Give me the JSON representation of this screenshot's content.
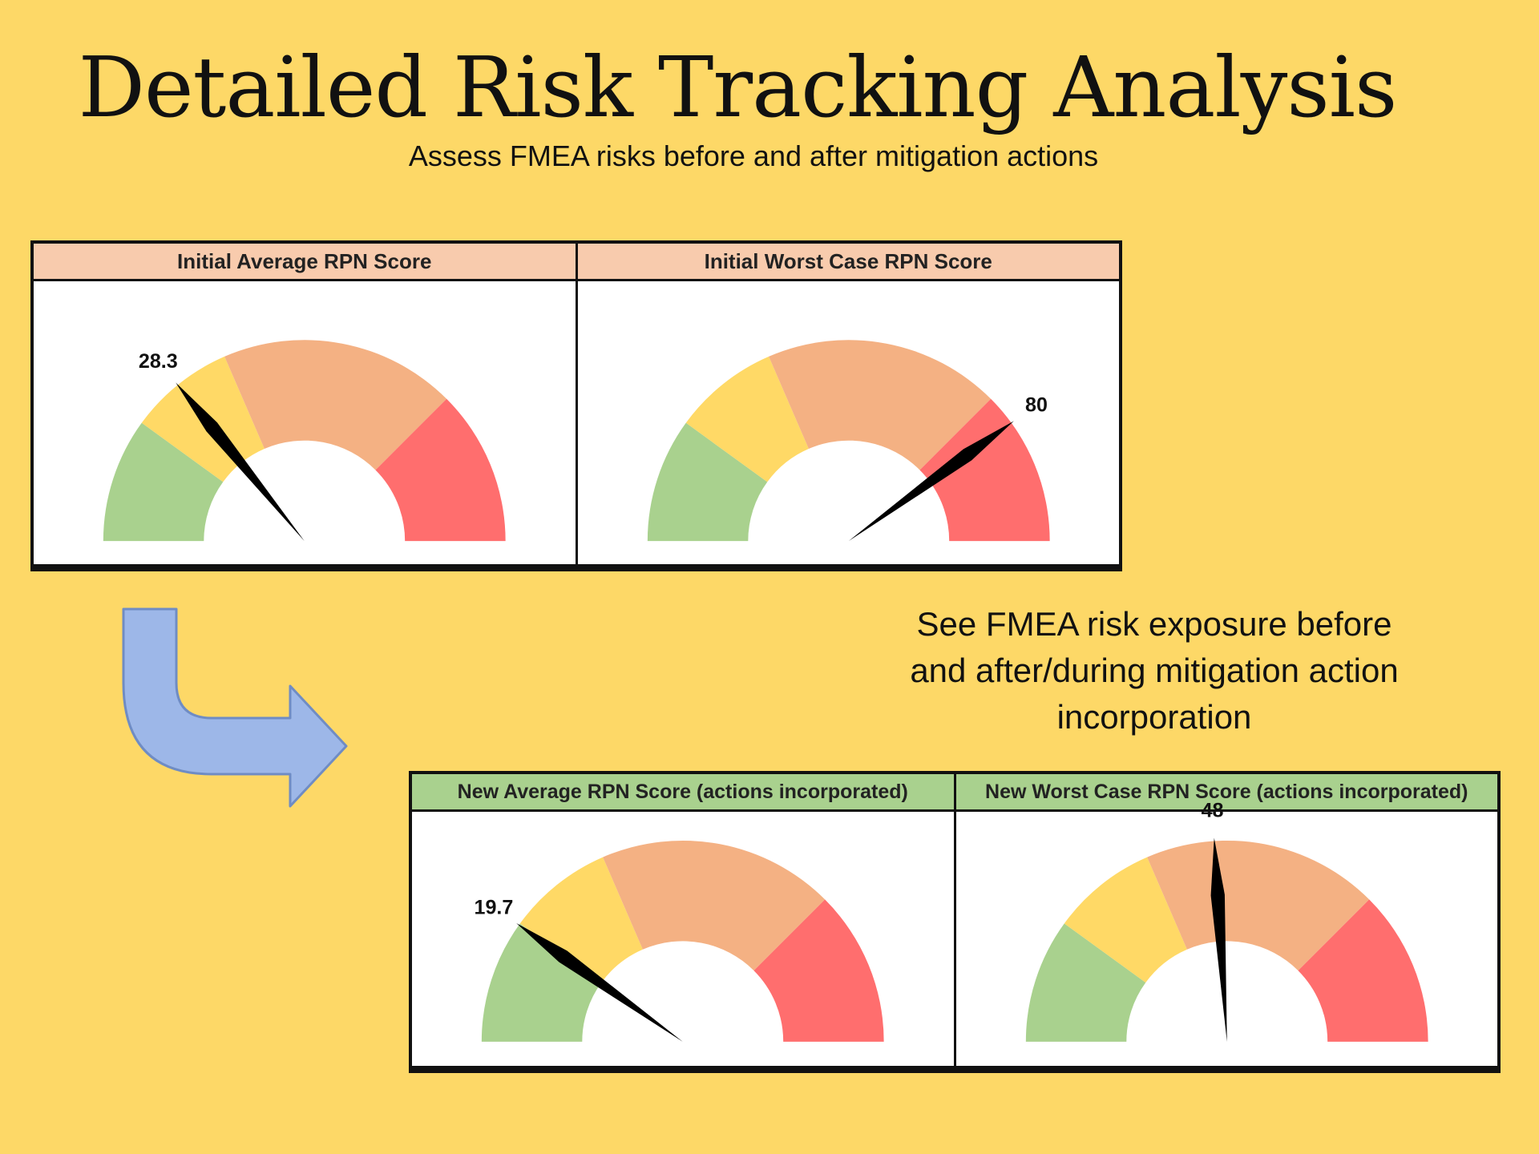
{
  "title": "Detailed Risk Tracking Analysis",
  "subtitle": "Assess FMEA risks before and after mitigation actions",
  "side_note": "See FMEA risk exposure before and after/during mitigation action incorporation",
  "colors": {
    "background": "#FDD867",
    "band_green": "#A9D18E",
    "band_yellow": "#FFD966",
    "band_orange": "#F4B183",
    "band_red": "#FF6E6E",
    "initial_header": "#F8CBAD",
    "new_header": "#A9D18E",
    "arrow": "#9DB7E8"
  },
  "chart_data": [
    {
      "type": "gauge",
      "title": "Initial Average RPN Score",
      "value": 28.3,
      "value_label": "28.3",
      "range": [
        0,
        100
      ],
      "bands": [
        {
          "color": "#A9D18E",
          "from": 0,
          "to": 20
        },
        {
          "color": "#FFD966",
          "from": 20,
          "to": 37
        },
        {
          "color": "#F4B183",
          "from": 37,
          "to": 75
        },
        {
          "color": "#FF6E6E",
          "from": 75,
          "to": 100
        }
      ]
    },
    {
      "type": "gauge",
      "title": "Initial Worst Case RPN Score",
      "value": 80,
      "value_label": "80",
      "range": [
        0,
        100
      ],
      "bands": [
        {
          "color": "#A9D18E",
          "from": 0,
          "to": 20
        },
        {
          "color": "#FFD966",
          "from": 20,
          "to": 37
        },
        {
          "color": "#F4B183",
          "from": 37,
          "to": 75
        },
        {
          "color": "#FF6E6E",
          "from": 75,
          "to": 100
        }
      ]
    },
    {
      "type": "gauge",
      "title": "New Average RPN Score (actions incorporated)",
      "value": 19.7,
      "value_label": "19.7",
      "range": [
        0,
        100
      ],
      "bands": [
        {
          "color": "#A9D18E",
          "from": 0,
          "to": 20
        },
        {
          "color": "#FFD966",
          "from": 20,
          "to": 37
        },
        {
          "color": "#F4B183",
          "from": 37,
          "to": 75
        },
        {
          "color": "#FF6E6E",
          "from": 75,
          "to": 100
        }
      ]
    },
    {
      "type": "gauge",
      "title": "New Worst Case RPN Score (actions incorporated)",
      "value": 48,
      "value_label": "48",
      "range": [
        0,
        100
      ],
      "bands": [
        {
          "color": "#A9D18E",
          "from": 0,
          "to": 20
        },
        {
          "color": "#FFD966",
          "from": 20,
          "to": 37
        },
        {
          "color": "#F4B183",
          "from": 37,
          "to": 75
        },
        {
          "color": "#FF6E6E",
          "from": 75,
          "to": 100
        }
      ]
    }
  ]
}
